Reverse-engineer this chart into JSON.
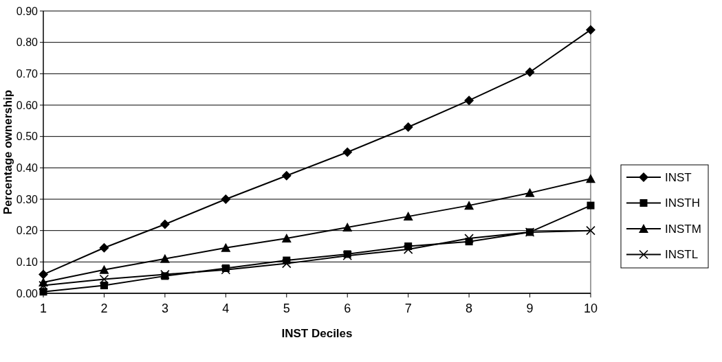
{
  "chart_data": {
    "type": "line",
    "xlabel": "INST Deciles",
    "ylabel": "Percentage ownership",
    "x": [
      1,
      2,
      3,
      4,
      5,
      6,
      7,
      8,
      9,
      10
    ],
    "xlim": [
      1,
      10
    ],
    "xticks": [
      1,
      2,
      3,
      4,
      5,
      6,
      7,
      8,
      9,
      10
    ],
    "ylim": [
      0,
      0.9
    ],
    "yticks": [
      {
        "value": 0,
        "label": "0.00"
      },
      {
        "value": 0.1,
        "label": "0.10"
      },
      {
        "value": 0.2,
        "label": "0.20"
      },
      {
        "value": 0.3,
        "label": "0.30"
      },
      {
        "value": 0.4,
        "label": "0.40"
      },
      {
        "value": 0.5,
        "label": "0.50"
      },
      {
        "value": 0.6,
        "label": "0.60"
      },
      {
        "value": 0.7,
        "label": "0.70"
      },
      {
        "value": 0.8,
        "label": "0.80"
      },
      {
        "value": 0.9,
        "label": "0.90"
      }
    ],
    "grid": "y",
    "legend": "right",
    "series": [
      {
        "name": "INST",
        "color": "#000000",
        "marker": "diamond",
        "values": [
          0.06,
          0.145,
          0.22,
          0.3,
          0.375,
          0.45,
          0.53,
          0.615,
          0.705,
          0.84
        ]
      },
      {
        "name": "INSTH",
        "color": "#000000",
        "marker": "square",
        "values": [
          0.005,
          0.025,
          0.055,
          0.08,
          0.105,
          0.125,
          0.15,
          0.165,
          0.195,
          0.28
        ]
      },
      {
        "name": "INSTM",
        "color": "#000000",
        "marker": "triangle",
        "values": [
          0.035,
          0.075,
          0.11,
          0.145,
          0.175,
          0.21,
          0.245,
          0.28,
          0.32,
          0.365
        ]
      },
      {
        "name": "INSTL",
        "color": "#000000",
        "marker": "cross",
        "values": [
          0.025,
          0.045,
          0.06,
          0.075,
          0.095,
          0.12,
          0.14,
          0.175,
          0.195,
          0.2
        ]
      }
    ]
  }
}
